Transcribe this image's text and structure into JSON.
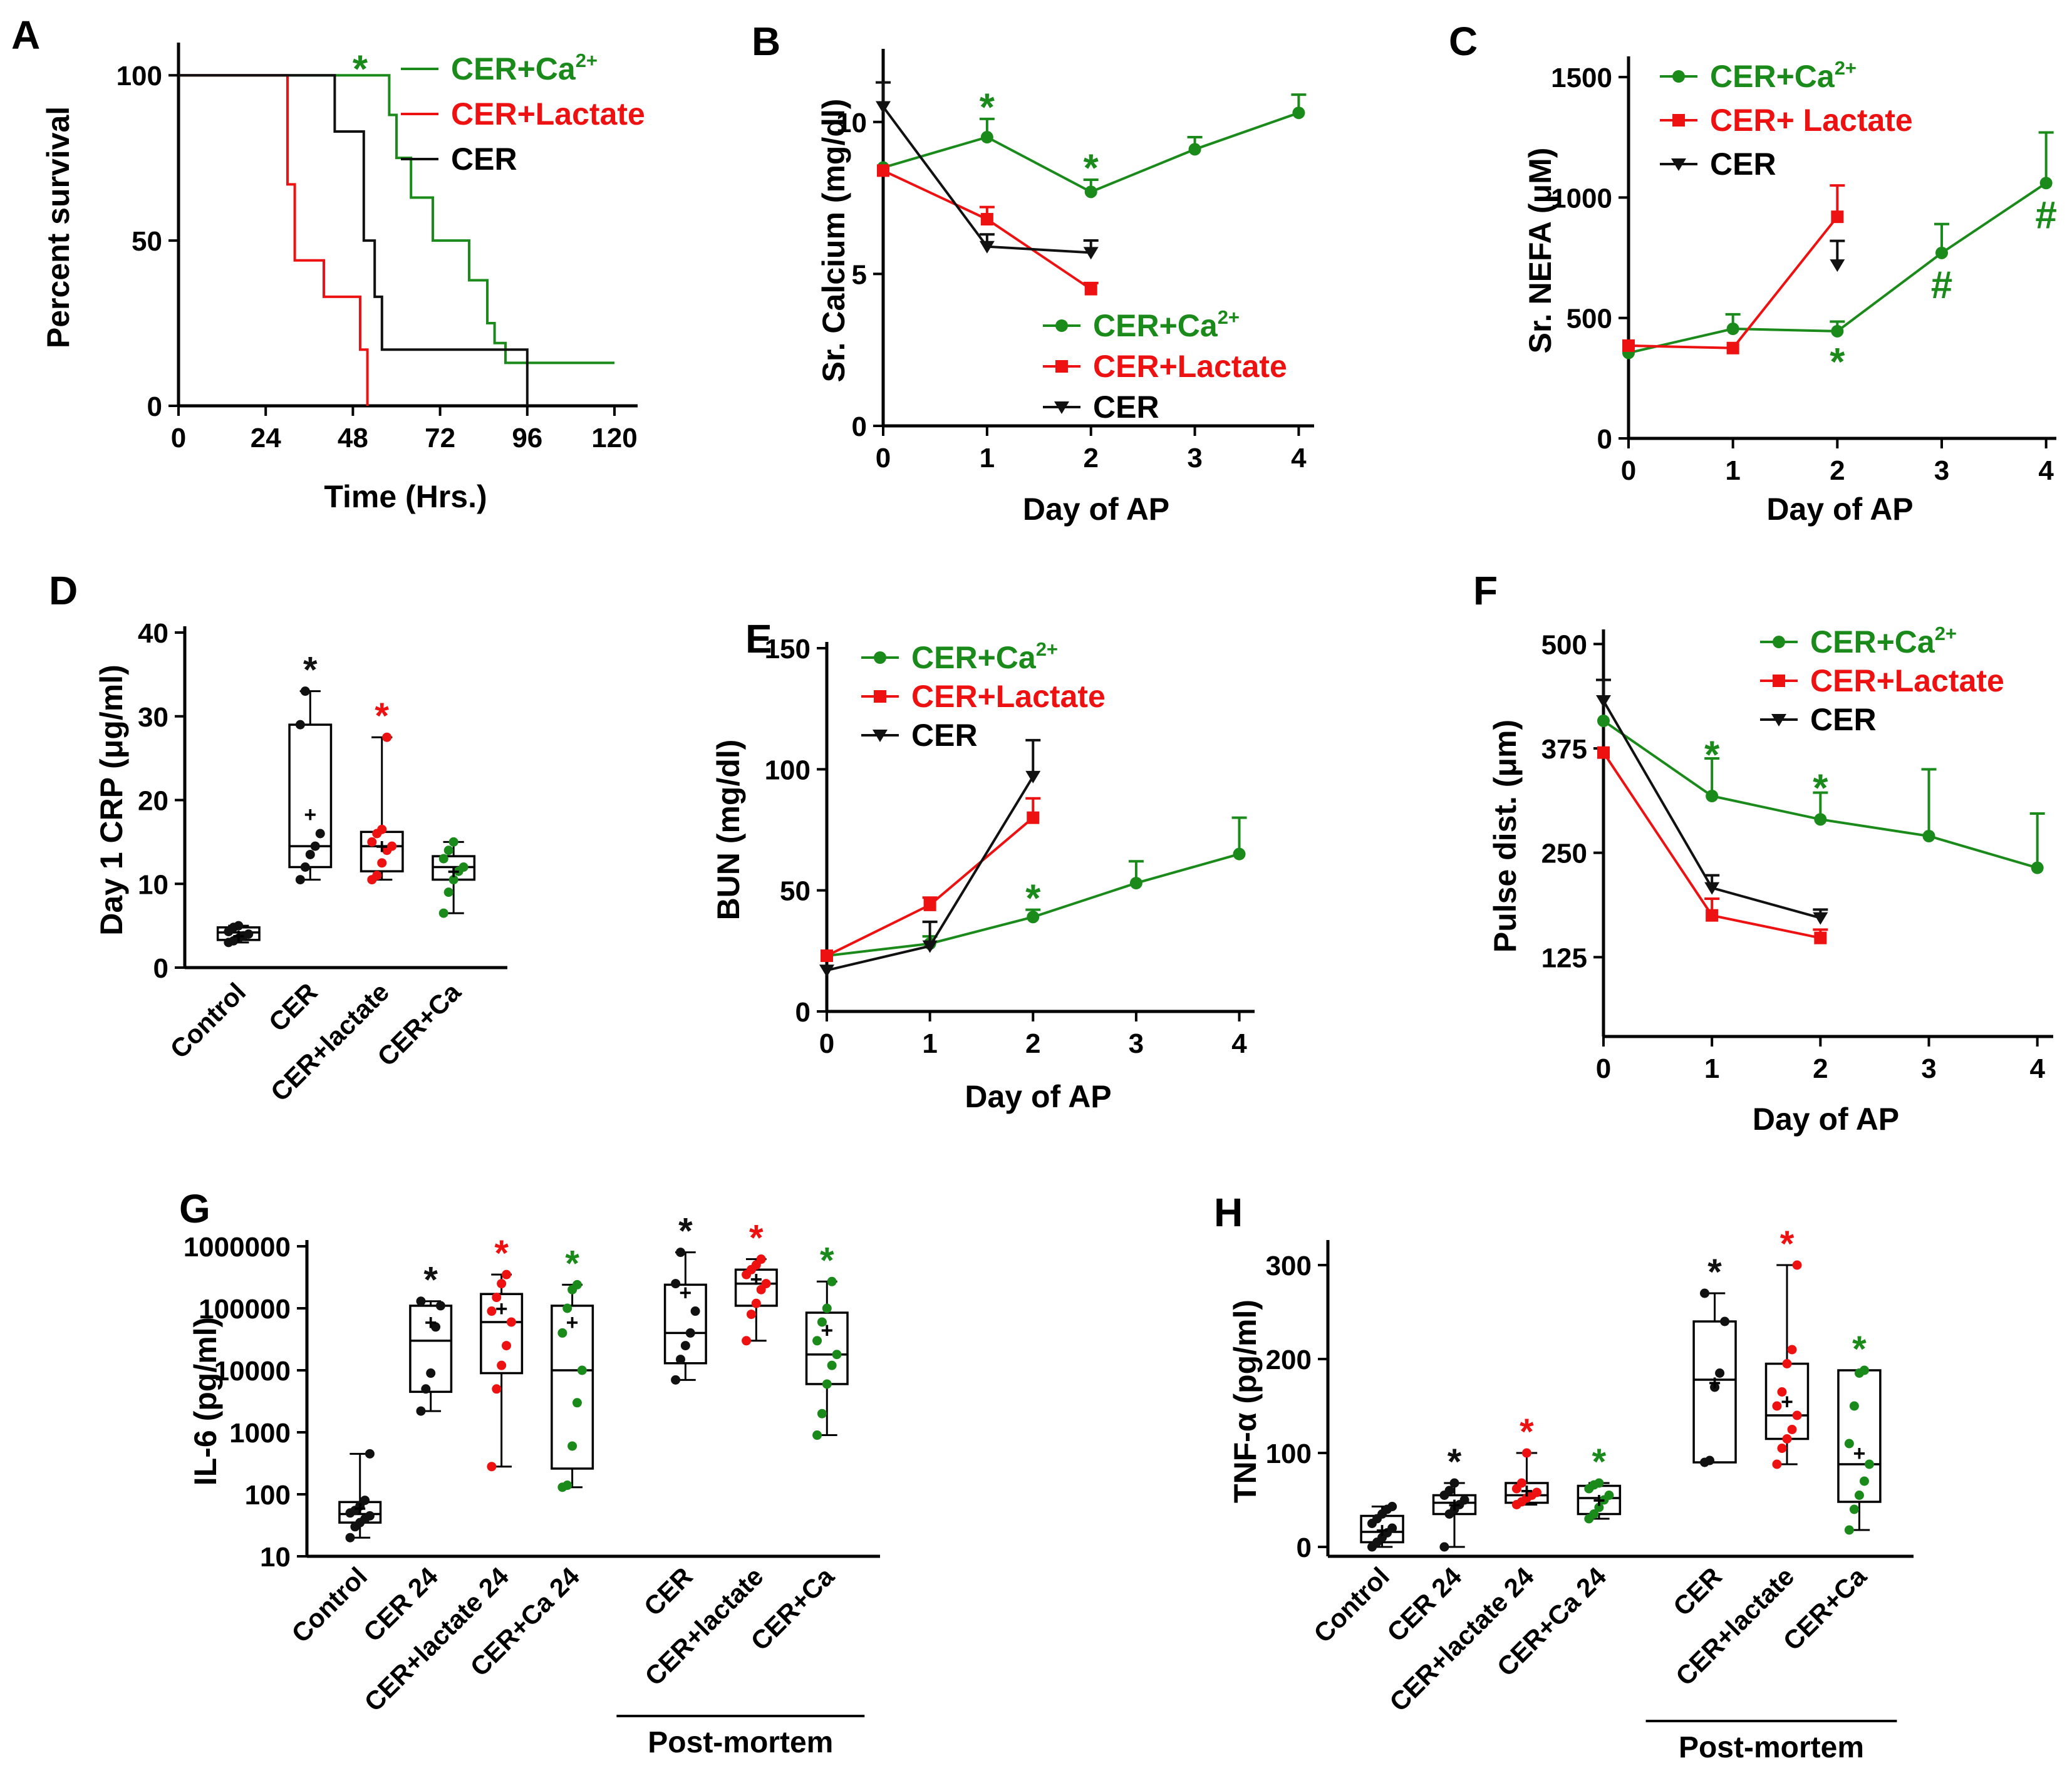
{
  "colors": {
    "green": "#1a8a1a",
    "red": "#ee1111",
    "black": "#111111"
  },
  "chart_data": [
    {
      "id": "A",
      "type": "line",
      "subtype": "survival-step",
      "panel_label": "A",
      "xlabel": "Time (Hrs.)",
      "ylabel": "Percent survival",
      "xlim": [
        0,
        125
      ],
      "ylim": [
        0,
        108
      ],
      "xticks": [
        0,
        24,
        48,
        72,
        96,
        120
      ],
      "yticks": [
        0,
        50,
        100
      ],
      "legend_position": "top-right",
      "series": [
        {
          "name": "CER+Ca2+",
          "color": "green",
          "line_only": true,
          "legend_main": "CER+Ca",
          "legend_sup": "2+",
          "x": [
            0,
            58,
            58,
            60,
            60,
            64,
            64,
            70,
            70,
            80,
            80,
            85,
            85,
            87,
            87,
            90,
            90,
            120
          ],
          "y": [
            100,
            100,
            88,
            88,
            75,
            75,
            63,
            63,
            50,
            50,
            38,
            38,
            25,
            25,
            19,
            19,
            13,
            13
          ]
        },
        {
          "name": "CER+Lactate",
          "color": "red",
          "line_only": true,
          "legend_main": "CER+Lactate",
          "x": [
            0,
            30,
            30,
            32,
            32,
            33,
            33,
            40,
            40,
            44,
            44,
            50,
            50,
            52,
            52
          ],
          "y": [
            100,
            100,
            67,
            67,
            44,
            44,
            44,
            44,
            33,
            33,
            33,
            33,
            17,
            17,
            0
          ]
        },
        {
          "name": "CER",
          "color": "black",
          "line_only": true,
          "legend_main": "CER",
          "x": [
            0,
            43,
            43,
            51,
            51,
            54,
            54,
            56,
            56,
            96,
            96
          ],
          "y": [
            100,
            100,
            83,
            83,
            50,
            50,
            33,
            33,
            17,
            17,
            0
          ]
        }
      ],
      "annotations": [
        {
          "text": "*",
          "x": 50,
          "y": 102,
          "color": "green"
        }
      ]
    },
    {
      "id": "B",
      "type": "line",
      "panel_label": "B",
      "xlabel": "Day of AP",
      "ylabel": "Sr. Calcium (mg/dl)",
      "xlim": [
        0,
        4.1
      ],
      "ylim": [
        0,
        12.2
      ],
      "xticks": [
        0,
        1,
        2,
        3,
        4
      ],
      "yticks": [
        0,
        5,
        10
      ],
      "legend_position": "bottom-right",
      "series": [
        {
          "name": "CER+Ca2+",
          "color": "green",
          "marker": "circle",
          "legend_main": "CER+Ca",
          "legend_sup": "2+",
          "x": [
            0,
            1,
            2,
            3,
            4
          ],
          "y": [
            8.5,
            9.5,
            7.7,
            9.1,
            10.3
          ],
          "err": [
            0,
            0.6,
            0.4,
            0.4,
            0.6
          ]
        },
        {
          "name": "CER+Lactate",
          "color": "red",
          "marker": "square",
          "legend_main": "CER+Lactate",
          "x": [
            0,
            1,
            2
          ],
          "y": [
            8.4,
            6.8,
            4.5
          ],
          "err": [
            0,
            0.4,
            0.2
          ]
        },
        {
          "name": "CER",
          "color": "black",
          "marker": "triangle",
          "legend_main": "CER",
          "x": [
            0,
            1,
            2
          ],
          "y": [
            10.5,
            5.9,
            5.7
          ],
          "err": [
            0.8,
            0.4,
            0.4
          ]
        }
      ],
      "annotations": [
        {
          "text": "*",
          "x": 1,
          "y": 10.5,
          "color": "green"
        },
        {
          "text": "*",
          "x": 2,
          "y": 8.5,
          "color": "green"
        }
      ]
    },
    {
      "id": "C",
      "type": "line",
      "panel_label": "C",
      "xlabel": "Day of AP",
      "ylabel": "Sr. NEFA (μM)",
      "xlim": [
        0,
        4.05
      ],
      "ylim": [
        0,
        1560
      ],
      "xticks": [
        0,
        1,
        2,
        3,
        4
      ],
      "yticks": [
        0,
        500,
        1000,
        1500
      ],
      "legend_position": "top-left",
      "series": [
        {
          "name": "CER+Ca2+",
          "color": "green",
          "marker": "circle",
          "legend_main": "CER+Ca",
          "legend_sup": "2+",
          "x": [
            0,
            1,
            2,
            3,
            4
          ],
          "y": [
            355,
            455,
            445,
            770,
            1060
          ],
          "err": [
            0,
            60,
            40,
            120,
            210
          ]
        },
        {
          "name": "CER+ Lactate",
          "color": "red",
          "marker": "square",
          "legend_main": "CER+ Lactate",
          "x": [
            0,
            1,
            2
          ],
          "y": [
            385,
            375,
            920
          ],
          "err": [
            0,
            0,
            130
          ]
        },
        {
          "name": "CER",
          "color": "black",
          "marker": "triangle",
          "legend_main": "CER",
          "x": [
            2
          ],
          "y": [
            720
          ],
          "err": [
            100
          ]
        }
      ],
      "annotations": [
        {
          "text": "*",
          "x": 2,
          "y": 320,
          "color": "green"
        },
        {
          "text": "#",
          "x": 3,
          "y": 640,
          "color": "green"
        },
        {
          "text": "#",
          "x": 4,
          "y": 930,
          "color": "green"
        }
      ]
    },
    {
      "id": "D",
      "type": "box",
      "panel_label": "D",
      "ylabel": "Day 1 CRP (μg/ml)",
      "ylim": [
        0,
        40
      ],
      "yticks": [
        0,
        10,
        20,
        30,
        40
      ],
      "ytick_labels": [
        "0",
        "10",
        "20",
        "30",
        "40"
      ],
      "categories": [
        "Control",
        "CER",
        "CER+lactate",
        "CER+Ca"
      ],
      "boxes": [
        {
          "color": "black",
          "min": 3,
          "q1": 3.3,
          "median": 4.2,
          "q3": 4.8,
          "max": 5,
          "mean": 3.8,
          "star": null,
          "points": [
            3,
            3.2,
            3.5,
            3.8,
            4,
            4.3,
            4.8,
            5
          ]
        },
        {
          "color": "black",
          "min": 10.5,
          "q1": 12,
          "median": 14.5,
          "q3": 29,
          "max": 33,
          "mean": 18.3,
          "star": "black",
          "points": [
            10.5,
            12,
            13.5,
            14.5,
            16,
            29,
            33
          ]
        },
        {
          "color": "red",
          "min": 10.5,
          "q1": 11.5,
          "median": 14.5,
          "q3": 16.2,
          "max": 27.5,
          "mean": 14.5,
          "star": "red",
          "points": [
            10.5,
            11,
            12.5,
            14,
            14.5,
            15,
            16,
            16.5,
            27.5
          ]
        },
        {
          "color": "green",
          "min": 6.5,
          "q1": 10.5,
          "median": 12,
          "q3": 13.3,
          "max": 15,
          "mean": 11.5,
          "star": null,
          "points": [
            6.5,
            9,
            10.5,
            11.5,
            12,
            13,
            14,
            15
          ]
        }
      ]
    },
    {
      "id": "E",
      "type": "line",
      "panel_label": "E",
      "xlabel": "Day of AP",
      "ylabel": "BUN (mg/dl)",
      "xlim": [
        0,
        4.1
      ],
      "ylim": [
        0,
        150
      ],
      "xticks": [
        0,
        1,
        2,
        3,
        4
      ],
      "yticks": [
        0,
        50,
        100,
        150
      ],
      "legend_position": "top-left",
      "series": [
        {
          "name": "CER+Ca2+",
          "color": "green",
          "marker": "circle",
          "legend_main": "CER+Ca",
          "legend_sup": "2+",
          "x": [
            0,
            1,
            2,
            3,
            4
          ],
          "y": [
            23,
            28,
            39,
            53,
            65
          ],
          "err": [
            0,
            3,
            3,
            9,
            15
          ]
        },
        {
          "name": "CER+Lactate",
          "color": "red",
          "marker": "square",
          "legend_main": "CER+Lactate",
          "x": [
            0,
            1,
            2
          ],
          "y": [
            23,
            44,
            80
          ],
          "err": [
            0,
            3,
            8
          ]
        },
        {
          "name": "CER",
          "color": "black",
          "marker": "triangle",
          "legend_main": "CER",
          "x": [
            0,
            1,
            2
          ],
          "y": [
            17,
            27,
            97
          ],
          "err": [
            0,
            10,
            15
          ]
        }
      ],
      "annotations": [
        {
          "text": "*",
          "x": 2,
          "y": 47,
          "color": "green"
        }
      ]
    },
    {
      "id": "F",
      "type": "line",
      "panel_label": "F",
      "xlabel": "Day of AP",
      "ylabel": "Pulse dist. (μm)",
      "xlim": [
        0,
        4.1
      ],
      "ylim": [
        30,
        510
      ],
      "xticks": [
        0,
        1,
        2,
        3,
        4
      ],
      "yticks": [
        125,
        250,
        375,
        500
      ],
      "legend_position": "top-right",
      "series": [
        {
          "name": "CER+Ca2+",
          "color": "green",
          "marker": "circle",
          "legend_main": "CER+Ca",
          "legend_sup": "2+",
          "x": [
            0,
            1,
            2,
            3,
            4
          ],
          "y": [
            408,
            318,
            290,
            270,
            232
          ],
          "err": [
            0,
            45,
            32,
            80,
            65
          ]
        },
        {
          "name": "CER+Lactate",
          "color": "red",
          "marker": "square",
          "legend_main": "CER+Lactate",
          "x": [
            0,
            1,
            2
          ],
          "y": [
            370,
            175,
            148
          ],
          "err": [
            0,
            20,
            10
          ]
        },
        {
          "name": "CER",
          "color": "black",
          "marker": "triangle",
          "legend_main": "CER",
          "x": [
            0,
            1,
            2
          ],
          "y": [
            432,
            208,
            172
          ],
          "err": [
            25,
            15,
            10
          ]
        }
      ],
      "annotations": [
        {
          "text": "*",
          "x": 1,
          "y": 368,
          "color": "green"
        },
        {
          "text": "*",
          "x": 2,
          "y": 328,
          "color": "green"
        }
      ]
    },
    {
      "id": "G",
      "type": "box",
      "panel_label": "G",
      "yscale": "log",
      "ylabel": "IL-6 (pg/ml)",
      "ylim": [
        10,
        1000000
      ],
      "yticks": [
        10,
        100,
        1000,
        10000,
        100000,
        1000000
      ],
      "ytick_labels": [
        "10",
        "100",
        "1000",
        "10000",
        "100000",
        "1000000"
      ],
      "categories": [
        "Control",
        "CER 24",
        "CER+lactate 24",
        "CER+Ca 24",
        "CER",
        "CER+lactate",
        "CER+Ca"
      ],
      "positions": [
        0,
        1,
        2,
        3,
        4.6,
        5.6,
        6.6
      ],
      "group_label": "Post-mortem",
      "boxes": [
        {
          "color": "black",
          "min": 20,
          "q1": 35,
          "median": 48,
          "q3": 75,
          "max": 450,
          "mean": 60,
          "star": null,
          "points": [
            20,
            30,
            35,
            40,
            45,
            50,
            55,
            65,
            80,
            450
          ]
        },
        {
          "color": "black",
          "min": 2200,
          "q1": 4500,
          "median": 30000,
          "q3": 110000,
          "max": 130000,
          "mean": 60000,
          "star": "black",
          "points": [
            2200,
            5000,
            9000,
            50000,
            110000,
            130000
          ]
        },
        {
          "color": "red",
          "min": 280,
          "q1": 9000,
          "median": 60000,
          "q3": 170000,
          "max": 350000,
          "mean": 100000,
          "star": "red",
          "points": [
            280,
            5000,
            12000,
            25000,
            60000,
            90000,
            150000,
            250000,
            350000
          ]
        },
        {
          "color": "green",
          "min": 130,
          "q1": 260,
          "median": 10000,
          "q3": 110000,
          "max": 240000,
          "mean": 60000,
          "star": "green",
          "points": [
            130,
            140,
            600,
            3000,
            10000,
            40000,
            100000,
            200000,
            240000
          ]
        },
        {
          "color": "black",
          "min": 7000,
          "q1": 13000,
          "median": 40000,
          "q3": 240000,
          "max": 800000,
          "mean": 180000,
          "star": "black",
          "points": [
            7000,
            15000,
            25000,
            40000,
            90000,
            250000,
            800000
          ]
        },
        {
          "color": "red",
          "min": 30000,
          "q1": 110000,
          "median": 250000,
          "q3": 420000,
          "max": 620000,
          "mean": 300000,
          "star": "red",
          "points": [
            30000,
            80000,
            120000,
            200000,
            250000,
            350000,
            420000,
            500000,
            620000
          ]
        },
        {
          "color": "green",
          "min": 900,
          "q1": 6000,
          "median": 18000,
          "q3": 85000,
          "max": 270000,
          "mean": 45000,
          "star": "green",
          "points": [
            900,
            2000,
            6000,
            12000,
            18000,
            30000,
            60000,
            100000,
            270000
          ]
        }
      ]
    },
    {
      "id": "H",
      "type": "box",
      "panel_label": "H",
      "ylabel": "TNF-α (pg/ml)",
      "ylim": [
        -10,
        320
      ],
      "yticks": [
        0,
        100,
        200,
        300
      ],
      "ytick_labels": [
        "0",
        "100",
        "200",
        "300"
      ],
      "categories": [
        "Control",
        "CER 24",
        "CER+lactate 24",
        "CER+Ca 24",
        "CER",
        "CER+lactate",
        "CER+Ca"
      ],
      "positions": [
        0,
        1,
        2,
        3,
        4.6,
        5.6,
        6.6
      ],
      "group_label": "Post-mortem",
      "boxes": [
        {
          "color": "black",
          "min": 0,
          "q1": 5,
          "median": 16,
          "q3": 33,
          "max": 43,
          "mean": 18,
          "star": null,
          "points": [
            0,
            5,
            10,
            15,
            20,
            25,
            30,
            35,
            40,
            43
          ]
        },
        {
          "color": "black",
          "min": 0,
          "q1": 35,
          "median": 47,
          "q3": 55,
          "max": 68,
          "mean": 45,
          "star": "black",
          "points": [
            0,
            35,
            40,
            45,
            50,
            55,
            60,
            68
          ]
        },
        {
          "color": "red",
          "min": 45,
          "q1": 47,
          "median": 55,
          "q3": 68,
          "max": 100,
          "mean": 60,
          "star": "red",
          "points": [
            45,
            48,
            52,
            55,
            58,
            62,
            68,
            100
          ]
        },
        {
          "color": "green",
          "min": 30,
          "q1": 35,
          "median": 52,
          "q3": 65,
          "max": 68,
          "mean": 50,
          "star": "green",
          "points": [
            30,
            35,
            42,
            50,
            55,
            62,
            66,
            68
          ]
        },
        {
          "color": "black",
          "min": 90,
          "q1": 90,
          "median": 178,
          "q3": 240,
          "max": 270,
          "mean": 175,
          "star": "black",
          "points": [
            90,
            92,
            170,
            185,
            240,
            270
          ]
        },
        {
          "color": "red",
          "min": 88,
          "q1": 115,
          "median": 140,
          "q3": 195,
          "max": 300,
          "mean": 155,
          "star": "red",
          "points": [
            88,
            105,
            115,
            125,
            140,
            150,
            165,
            195,
            210,
            300
          ]
        },
        {
          "color": "green",
          "min": 18,
          "q1": 48,
          "median": 88,
          "q3": 188,
          "max": 188,
          "mean": 100,
          "star": "green",
          "points": [
            18,
            40,
            55,
            70,
            88,
            110,
            150,
            185,
            188
          ]
        }
      ]
    }
  ]
}
